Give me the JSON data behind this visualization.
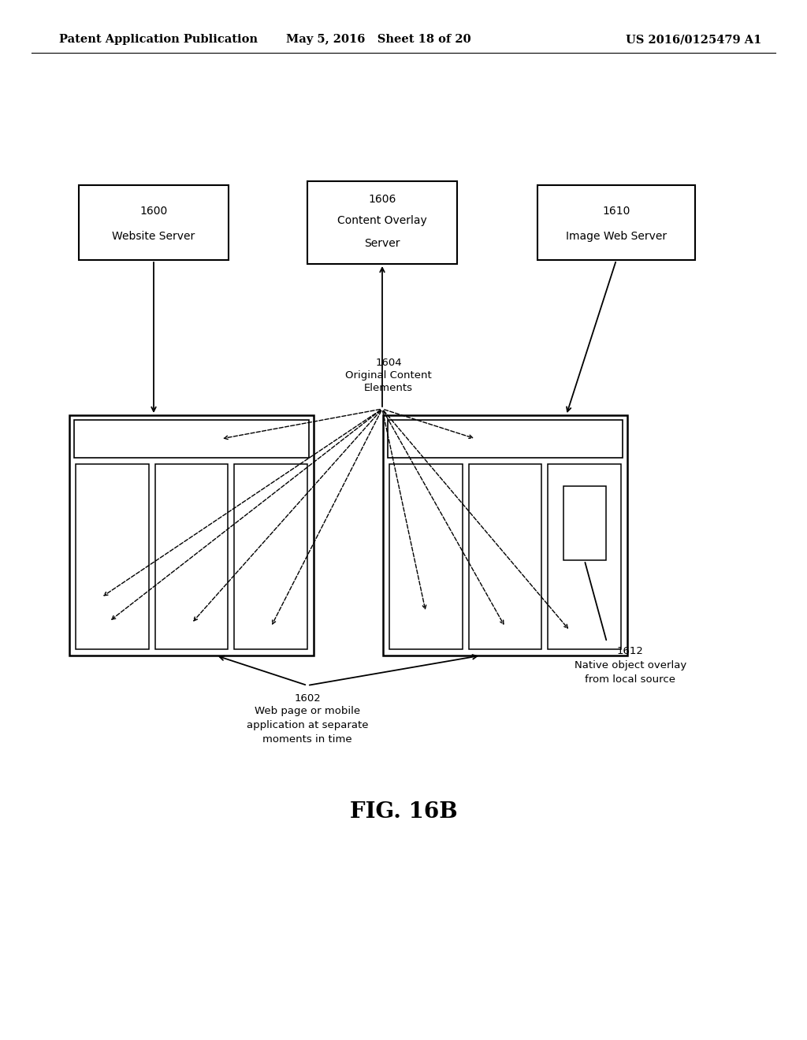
{
  "header_left": "Patent Application Publication",
  "header_mid": "May 5, 2016   Sheet 18 of 20",
  "header_right": "US 2016/0125479 A1",
  "figure_label": "FIG. 16B",
  "bg_color": "#ffffff",
  "box_1600_num": "1600",
  "box_1600_text": "Website Server",
  "box_1606_num": "1606",
  "box_1606_line1": "Content Overlay",
  "box_1606_line2": "Server",
  "box_1610_num": "1610",
  "box_1610_text": "Image Web Server",
  "label_1604_num": "1604",
  "label_1604_line1": "Original Content",
  "label_1604_line2": "Elements",
  "label_1602_num": "1602",
  "label_1602_line1": "Web page or mobile",
  "label_1602_line2": "application at separate",
  "label_1602_line3": "moments in time",
  "label_1612_num": "1612",
  "label_1612_line1": "Native object overlay",
  "label_1612_line2": "from local source"
}
